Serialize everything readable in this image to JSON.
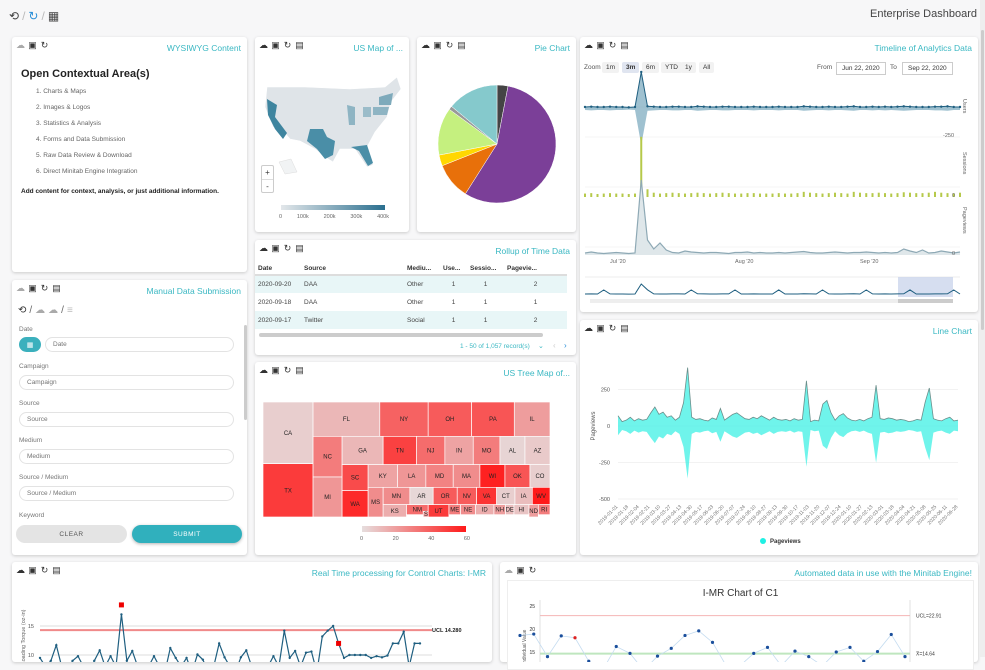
{
  "header": {
    "title": "Enterprise Dashboard",
    "icons": [
      "history-icon",
      "sync-icon",
      "calendar-icon"
    ]
  },
  "wysiwyg": {
    "title": "WYSIWYG Content",
    "heading": "Open Contextual Area(s)",
    "items": [
      "1. Charts & Maps",
      "2. Images & Logos",
      "3. Statistics & Analysis",
      "4. Forms and Data Submission",
      "5. Raw Data Review & Download",
      "6. Direct Minitab Engine Integration"
    ],
    "note": "Add content for context, analysis, or just additional information."
  },
  "form": {
    "title": "Manual Data Submission",
    "fields": [
      {
        "label": "Date",
        "placeholder": "Date"
      },
      {
        "label": "Campaign",
        "placeholder": "Campaign"
      },
      {
        "label": "Source",
        "placeholder": "Source"
      },
      {
        "label": "Medium",
        "placeholder": "Medium"
      },
      {
        "label": "Source / Medium",
        "placeholder": "Source / Medium"
      },
      {
        "label": "Keyword",
        "placeholder": ""
      }
    ],
    "clear": "CLEAR",
    "submit": "SUBMIT"
  },
  "usmap": {
    "title": "US Map of ...",
    "zoom_in": "+",
    "zoom_out": "-",
    "legend": [
      "0",
      "100k",
      "200k",
      "300k",
      "400k"
    ],
    "colors": {
      "low": "#e3e7ea",
      "high": "#2a6f8f"
    }
  },
  "pie": {
    "title": "Pie Chart"
  },
  "rollup": {
    "title": "Rollup of Time Data",
    "columns": [
      "Date",
      "Source",
      "Mediu...",
      "Use...",
      "Sessio...",
      "Pagevie..."
    ],
    "rows": [
      [
        "2020-09-20",
        "DAA",
        "Other",
        "1",
        "1",
        "2"
      ],
      [
        "2020-09-18",
        "DAA",
        "Other",
        "1",
        "1",
        "1"
      ],
      [
        "2020-09-17",
        "Twitter",
        "Social",
        "1",
        "1",
        "2"
      ]
    ],
    "pager": "1 - 50 of 1,057 record(s)"
  },
  "treemap": {
    "title": "US Tree Map of..."
  },
  "timeline": {
    "title": "Timeline of Analytics Data",
    "zoom_label": "Zoom",
    "zoom_options": [
      "1m",
      "3m",
      "6m",
      "YTD",
      "1y",
      "All"
    ],
    "zoom_selected": "3m",
    "from_label": "From",
    "from": "Jun 22, 2020",
    "to_label": "To",
    "to": "Sep 22, 2020"
  },
  "linechart": {
    "title": "Line Chart"
  },
  "control": {
    "title": "Real Time processing for Control Charts: I-MR"
  },
  "minitab": {
    "title": "Automated data in use with the Minitab Engine!"
  },
  "accent": "#3bb8c3",
  "chart_data": [
    {
      "type": "pie",
      "slices": [
        {
          "value": 3,
          "color": "#444444"
        },
        {
          "value": 56,
          "color": "#7b3f98"
        },
        {
          "value": 10,
          "color": "#e8700a"
        },
        {
          "value": 3,
          "color": "#ffd700"
        },
        {
          "value": 13,
          "color": "#c5f07f"
        },
        {
          "value": 1,
          "color": "#999999"
        },
        {
          "value": 14,
          "color": "#85c9cc"
        }
      ]
    },
    {
      "type": "heatmap",
      "subtype": "treemap",
      "scale": {
        "min": 0,
        "max": 60,
        "ticks": [
          "0",
          "20",
          "40",
          "60"
        ]
      },
      "cells": [
        {
          "label": "CA",
          "value": 5
        },
        {
          "label": "TX",
          "value": 50
        },
        {
          "label": "FL",
          "value": 12
        },
        {
          "label": "NY",
          "value": 38
        },
        {
          "label": "OH",
          "value": 40
        },
        {
          "label": "PA",
          "value": 42
        },
        {
          "label": "IL",
          "value": 20
        },
        {
          "label": "NC",
          "value": 30
        },
        {
          "label": "MI",
          "value": 22
        },
        {
          "label": "GA",
          "value": 12
        },
        {
          "label": "TN",
          "value": 48
        },
        {
          "label": "NJ",
          "value": 35
        },
        {
          "label": "IN",
          "value": 18
        },
        {
          "label": "MO",
          "value": 30
        },
        {
          "label": "AL",
          "value": 3
        },
        {
          "label": "AZ",
          "value": 6
        },
        {
          "label": "SC",
          "value": 45
        },
        {
          "label": "WA",
          "value": 55
        },
        {
          "label": "KY",
          "value": 18
        },
        {
          "label": "LA",
          "value": 22
        },
        {
          "label": "MD",
          "value": 28
        },
        {
          "label": "MA",
          "value": 25
        },
        {
          "label": "WI",
          "value": 58
        },
        {
          "label": "OK",
          "value": 42
        },
        {
          "label": "CO",
          "value": 5
        },
        {
          "label": "MS",
          "value": 25
        },
        {
          "label": "MN",
          "value": 25
        },
        {
          "label": "KS",
          "value": 15
        },
        {
          "label": "AR",
          "value": 2
        },
        {
          "label": "NM",
          "value": 35
        },
        {
          "label": "SD",
          "value": 20
        },
        {
          "label": "OR",
          "value": 40
        },
        {
          "label": "NV",
          "value": 40
        },
        {
          "label": "VA",
          "value": 52
        },
        {
          "label": "CT",
          "value": 5
        },
        {
          "label": "IA",
          "value": 10
        },
        {
          "label": "WV",
          "value": 60
        },
        {
          "label": "UT",
          "value": 50
        },
        {
          "label": "ME",
          "value": 30
        },
        {
          "label": "NE",
          "value": 25
        },
        {
          "label": "ID",
          "value": 15
        },
        {
          "label": "NH",
          "value": 20
        },
        {
          "label": "DE",
          "value": 10
        },
        {
          "label": "HI",
          "value": 8
        },
        {
          "label": "ND",
          "value": 20
        },
        {
          "label": "RI",
          "value": 30
        }
      ]
    },
    {
      "type": "line",
      "name": "timeline",
      "series": [
        {
          "name": "Users",
          "values": [
            20,
            21,
            20,
            20,
            21,
            20,
            20,
            19,
            20,
            120,
            22,
            21,
            20,
            20,
            21,
            21,
            20,
            20,
            22,
            21,
            20,
            20,
            21,
            21,
            20,
            20,
            20,
            21,
            20,
            20,
            20,
            21,
            20,
            20,
            20,
            22,
            21,
            20,
            20,
            21,
            20,
            20,
            21,
            22,
            20,
            20,
            21,
            20,
            21,
            20,
            21,
            22,
            21,
            20,
            20,
            20,
            21,
            21,
            22,
            20,
            20
          ]
        },
        {
          "name": "Sessions",
          "values": [
            8,
            9,
            7,
            8,
            9,
            8,
            8,
            7,
            8,
            140,
            18,
            10,
            8,
            9,
            10,
            9,
            8,
            9,
            10,
            9,
            8,
            9,
            10,
            9,
            8,
            8,
            9,
            9,
            8,
            8,
            8,
            9,
            8,
            8,
            9,
            12,
            10,
            9,
            8,
            9,
            10,
            9,
            8,
            12,
            10,
            9,
            9,
            10,
            9,
            8,
            9,
            11,
            10,
            9,
            9,
            10,
            12,
            10,
            9,
            8,
            10
          ]
        },
        {
          "name": "Pageviews",
          "values": [
            4,
            6,
            4,
            3,
            4,
            5,
            4,
            3,
            4,
            150,
            30,
            12,
            24,
            10,
            5,
            4,
            8,
            6,
            5,
            4,
            5,
            5,
            4,
            3,
            5,
            5,
            6,
            4,
            5,
            4,
            4,
            5,
            4,
            5,
            6,
            7,
            5,
            4,
            4,
            5,
            6,
            5,
            4,
            5,
            5,
            6,
            5,
            4,
            5,
            4,
            5,
            12,
            8,
            5,
            10,
            4,
            5,
            8,
            6,
            4,
            6
          ]
        }
      ],
      "x_ticks": [
        "Jul '20",
        "Aug '20",
        "Sep '20"
      ],
      "y_ticks": {
        "Users": "-250",
        "Sessions": "0",
        "Pageviews": "0"
      }
    },
    {
      "type": "area",
      "name": "Pageviews",
      "ylabel": "Pageviews",
      "ylim": [
        -500,
        400
      ],
      "y_ticks": [
        "250",
        "0",
        "-250",
        "-500"
      ],
      "legend": "bottom",
      "x_ticks": [
        "2019-01-01",
        "2019-01-18",
        "2019-02-04",
        "2019-02-21",
        "2019-03-10",
        "2019-03-27",
        "2019-04-13",
        "2019-04-30",
        "2019-05-17",
        "2019-06-03",
        "2019-06-20",
        "2019-07-07",
        "2019-07-24",
        "2019-08-10",
        "2019-08-27",
        "2019-09-13",
        "2019-09-30",
        "2019-10-17",
        "2019-11-03",
        "2019-11-20",
        "2019-12-07",
        "2019-12-24",
        "2020-01-10",
        "2020-01-27",
        "2020-02-13",
        "2020-03-01",
        "2020-03-18",
        "2020-04-04",
        "2020-04-21",
        "2020-05-08",
        "2020-05-25",
        "2020-06-11",
        "2020-06-28"
      ],
      "values": [
        70,
        30,
        40,
        60,
        35,
        50,
        40,
        45,
        90,
        130,
        80,
        95,
        60,
        70,
        40,
        60,
        160,
        400,
        60,
        45,
        50,
        40,
        35,
        55,
        45,
        120,
        40,
        60,
        80,
        90,
        70,
        50,
        45,
        60,
        50,
        70,
        55,
        40,
        60,
        45,
        40,
        45,
        35,
        50,
        40,
        45,
        310,
        30,
        40,
        35,
        150,
        175,
        90,
        40,
        70,
        85,
        55,
        40,
        35,
        45,
        35,
        50,
        60,
        280,
        50,
        45,
        55,
        50,
        40,
        45,
        40,
        30,
        35,
        45,
        40,
        165,
        260,
        50,
        40,
        35,
        50,
        60,
        35,
        40
      ]
    },
    {
      "type": "line",
      "name": "I-MR control chart",
      "ylabel": "Loading Torque (oz-in)",
      "y_ticks": [
        "15",
        "10"
      ],
      "ucl_label": "UCL 14.280",
      "ucl": 14.28,
      "values": [
        9.5,
        8,
        9,
        11.7,
        8,
        7.5,
        9,
        9.8,
        8,
        7,
        9,
        10.8,
        8,
        9.8,
        8,
        17,
        9,
        10.7,
        8,
        7,
        8,
        9.8,
        8,
        7,
        11.2,
        9.5,
        8,
        9.5,
        7,
        10.1,
        9.2,
        7,
        8,
        12,
        9.6,
        8,
        7,
        9.6,
        10.8,
        8,
        7,
        6,
        8,
        9.8,
        8,
        14.2,
        9.5,
        10.7,
        8,
        10.4,
        10.6,
        7,
        13.2,
        14.2,
        15,
        12,
        9.5,
        10,
        10,
        10,
        10,
        9.5,
        9.8,
        9.6,
        9.9,
        12,
        12,
        14,
        8,
        12,
        12
      ],
      "out_of_control": [
        15,
        55
      ]
    },
    {
      "type": "line",
      "name": "I-MR Chart of C1",
      "title": "I-MR Chart of C1",
      "ylabel": "Individual Value",
      "y_ticks": [
        "25",
        "20",
        "15"
      ],
      "ucl_label": "UCL=22.91",
      "mean_label": "X̄=14.64",
      "ucl": 22.91,
      "mean": 14.64,
      "values": [
        18.6,
        18.9,
        14,
        18.5,
        18.1,
        13,
        11,
        16.2,
        14.7,
        11,
        14.1,
        15.8,
        18.6,
        19.6,
        17.1,
        12,
        12,
        14.7,
        16,
        12,
        15.2,
        14,
        12,
        15,
        16,
        13,
        15.1,
        18.8,
        14
      ],
      "out_of_control": [
        4
      ]
    }
  ]
}
